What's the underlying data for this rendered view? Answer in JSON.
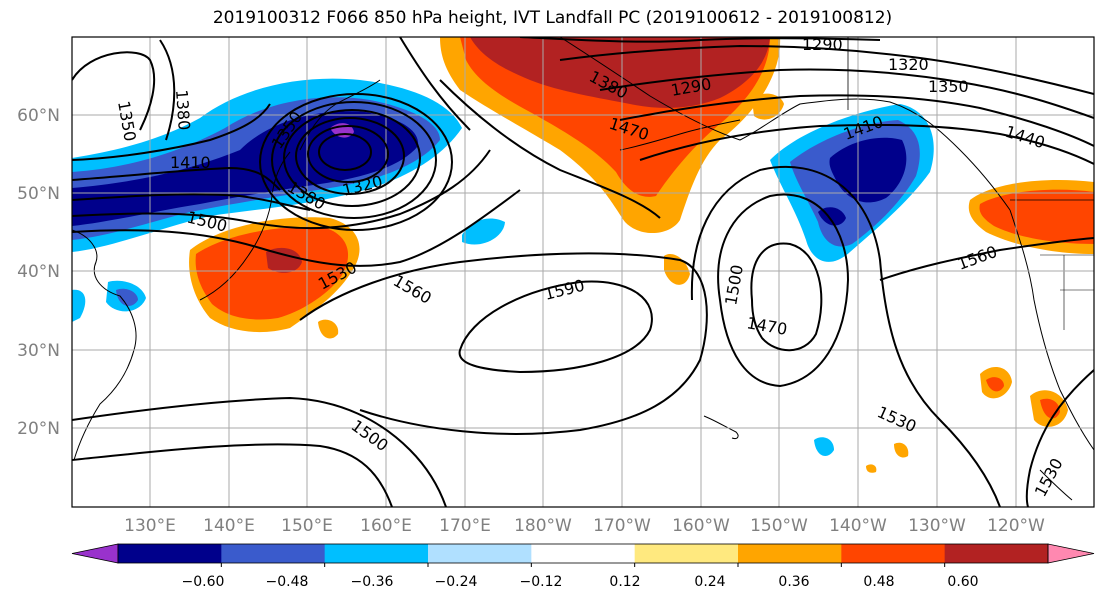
{
  "title": "2019100312 F066 850 hPa height, IVT Landfall PC (2019100612 - 2019100812)",
  "lat_labels": [
    "60°N",
    "50°N",
    "40°N",
    "30°N",
    "20°N"
  ],
  "lon_labels": [
    "130°E",
    "140°E",
    "150°E",
    "160°E",
    "170°E",
    "180°W",
    "170°W",
    "160°W",
    "150°W",
    "140°W",
    "130°W",
    "120°W"
  ],
  "contour_labels": [
    "1350",
    "1380",
    "1410",
    "1500",
    "1530",
    "1560",
    "1590",
    "1500",
    "1470",
    "1530",
    "1500",
    "1560",
    "1530",
    "1290",
    "1290",
    "1320",
    "1350",
    "1440",
    "1410",
    "1470",
    "1380",
    "1350",
    "1380",
    "1320"
  ],
  "colorbar": {
    "ticks": [
      "−0.60",
      "−0.48",
      "−0.36",
      "−0.24",
      "−0.12",
      "0.12",
      "0.24",
      "0.36",
      "0.48",
      "0.60"
    ],
    "colors": [
      "#9932cc",
      "#00008b",
      "#3a5bcc",
      "#00bfff",
      "#b0e0ff",
      "#ffffff",
      "#ffe97f",
      "#ffa500",
      "#ff4500",
      "#b22222",
      "#ff88b0"
    ]
  }
}
